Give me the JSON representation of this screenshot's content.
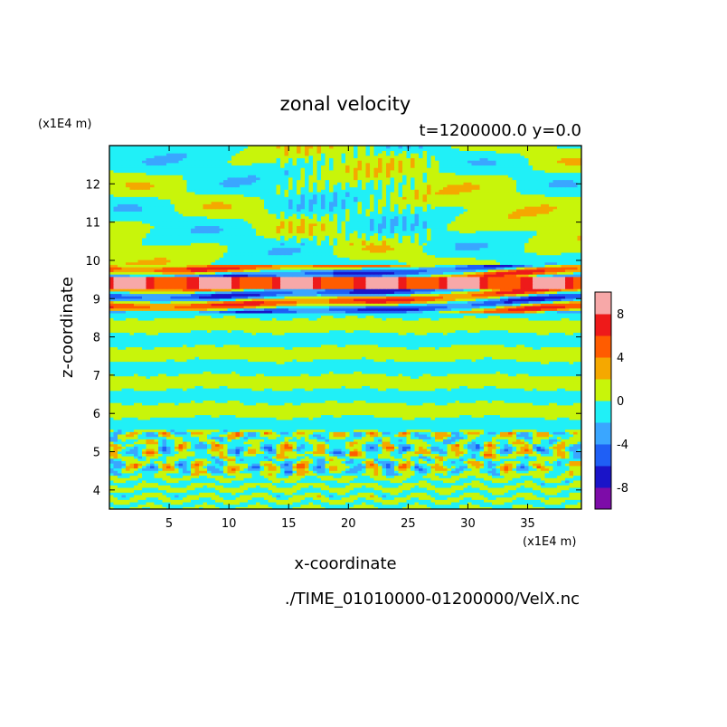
{
  "chart_data": {
    "type": "heatmap",
    "title": "zonal velocity",
    "subtitle": "t=1200000.0 y=0.0",
    "xlabel": "x-coordinate",
    "ylabel": "z-coordinate",
    "x_unit": "(x1E4 m)",
    "y_unit": "(x1E4 m)",
    "footer": "./TIME_01010000-01200000/VelX.nc",
    "xlim": [
      0,
      39.5
    ],
    "ylim": [
      3.5,
      13
    ],
    "xticks": [
      5,
      10,
      15,
      20,
      25,
      30,
      35
    ],
    "yticks": [
      4,
      5,
      6,
      7,
      8,
      9,
      10,
      11,
      12
    ],
    "colorbar": {
      "levels": [
        -10,
        -8,
        -6,
        -4,
        -2,
        0,
        2,
        4,
        6,
        8,
        10
      ],
      "tick_labels": [
        "8",
        "4",
        "0",
        "-4",
        "-8"
      ],
      "colors": [
        "#7d0ca8",
        "#1a14c8",
        "#1f5ff5",
        "#3aa6ff",
        "#20f0f7",
        "#c8f50a",
        "#f5a800",
        "#ff5c00",
        "#ee1a1a",
        "#f7a8a8"
      ]
    },
    "bands": [
      {
        "z": [
          3.5,
          5.6
        ],
        "pattern": "cellular convection, mostly -2..2, scattered -6..4 cells"
      },
      {
        "z": [
          5.6,
          8.6
        ],
        "pattern": "horizontal layers alternating -2..0 and 0..2"
      },
      {
        "z": [
          8.6,
          9.9
        ],
        "pattern": "strong jet, bands reaching -10 and 10"
      },
      {
        "z": [
          9.9,
          13
        ],
        "pattern": "large patches 0..2 and -2..0 with gravity-wave streaks"
      }
    ]
  }
}
